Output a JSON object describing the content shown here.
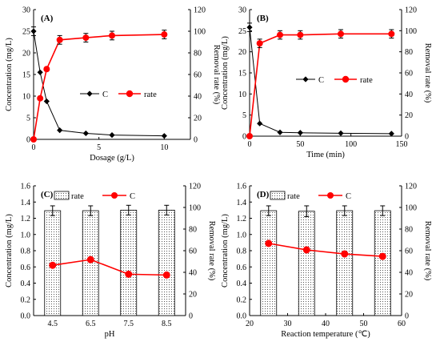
{
  "chart_data": [
    {
      "panel": "(A)",
      "type": "line",
      "xlabel": "Dosage (g/L)",
      "ylabel_left": "Concentration (mg/L)",
      "ylabel_right": "Removal rate (%)",
      "xlim": [
        0,
        12
      ],
      "xticks": [
        0,
        5,
        10
      ],
      "ylim_left": [
        0,
        30
      ],
      "yticks_left": [
        0,
        5,
        10,
        15,
        20,
        25,
        30
      ],
      "ylim_right": [
        0,
        120
      ],
      "yticks_right": [
        0,
        20,
        40,
        60,
        80,
        100,
        120
      ],
      "legend_position": "center-right",
      "series": [
        {
          "name": "C",
          "axis": "left",
          "marker": "diamond",
          "color": "#000000",
          "x": [
            0,
            0.5,
            1,
            2,
            4,
            6,
            10
          ],
          "y": [
            25.0,
            15.5,
            8.8,
            2.1,
            1.4,
            1.0,
            0.8
          ],
          "err": [
            1.0,
            0,
            0,
            0,
            0,
            0,
            0
          ]
        },
        {
          "name": "rate",
          "axis": "right",
          "marker": "circle",
          "color": "#ff0000",
          "x": [
            0,
            0.5,
            1,
            2,
            4,
            6,
            10
          ],
          "y": [
            0,
            38,
            65,
            92,
            94,
            96,
            97
          ],
          "err": [
            0,
            0,
            0,
            4,
            4,
            4,
            4
          ]
        }
      ]
    },
    {
      "panel": "(B)",
      "type": "line",
      "xlabel": "Time (min)",
      "ylabel_left": "Concentration (mg/L)",
      "ylabel_right": "Removal rate (%)",
      "xlim": [
        0,
        150
      ],
      "xticks": [
        0,
        50,
        100,
        150
      ],
      "ylim_left": [
        0,
        30
      ],
      "yticks_left": [
        0,
        5,
        10,
        15,
        20,
        25,
        30
      ],
      "ylim_right": [
        0,
        120
      ],
      "yticks_right": [
        0,
        20,
        40,
        60,
        80,
        100,
        120
      ],
      "legend_position": "center-right",
      "series": [
        {
          "name": "C",
          "axis": "left",
          "marker": "diamond",
          "color": "#000000",
          "x": [
            0,
            10,
            30,
            50,
            90,
            140
          ],
          "y": [
            25.8,
            3.0,
            0.9,
            0.8,
            0.7,
            0.6
          ],
          "err": [
            1.0,
            0,
            0,
            0,
            0,
            0
          ]
        },
        {
          "name": "rate",
          "axis": "right",
          "marker": "circle",
          "color": "#ff0000",
          "x": [
            0,
            10,
            30,
            50,
            90,
            140
          ],
          "y": [
            0,
            88,
            96,
            96,
            97,
            97
          ],
          "err": [
            0,
            4,
            4,
            4,
            4,
            4
          ]
        }
      ]
    },
    {
      "panel": "(C)",
      "type": "bar",
      "xlabel": "pH",
      "ylabel_left": "Concentration (mg/L)",
      "ylabel_right": "Removal rate (%)",
      "categories": [
        "4.5",
        "6.5",
        "7.5",
        "8.5"
      ],
      "ylim_left": [
        0,
        1.6
      ],
      "yticks_left": [
        0,
        0.2,
        0.4,
        0.6,
        0.8,
        1.0,
        1.2,
        1.4,
        1.6
      ],
      "ylim_right": [
        0,
        120
      ],
      "yticks_right": [
        0,
        20,
        40,
        60,
        80,
        100,
        120
      ],
      "legend_position": "top",
      "bars": {
        "name": "rate",
        "axis": "right",
        "values": [
          97,
          97,
          97.5,
          97.5
        ],
        "err": [
          4.5,
          4.5,
          4.5,
          4.5
        ]
      },
      "line": {
        "name": "C",
        "axis": "left",
        "marker": "circle",
        "color": "#ff0000",
        "values": [
          0.62,
          0.69,
          0.51,
          0.5
        ]
      }
    },
    {
      "panel": "(D)",
      "type": "bar",
      "xlabel": "Reaction temperature (℃)",
      "ylabel_left": "Concentration (mg/L)",
      "ylabel_right": "Removal rate (%)",
      "xlim": [
        20,
        60
      ],
      "xticks": [
        20,
        30,
        40,
        50,
        60
      ],
      "x": [
        25,
        35,
        45,
        55
      ],
      "ylim_left": [
        0,
        1.6
      ],
      "yticks_left": [
        0,
        0.2,
        0.4,
        0.6,
        0.8,
        1.0,
        1.2,
        1.4,
        1.6
      ],
      "ylim_right": [
        0,
        120
      ],
      "yticks_right": [
        0,
        20,
        40,
        60,
        80,
        100,
        120
      ],
      "legend_position": "top",
      "bars": {
        "name": "rate",
        "axis": "right",
        "values": [
          97,
          96.5,
          97,
          97
        ],
        "err": [
          4.5,
          5,
          4.5,
          4.5
        ]
      },
      "line": {
        "name": "C",
        "axis": "left",
        "marker": "circle",
        "color": "#ff0000",
        "values": [
          0.89,
          0.81,
          0.76,
          0.73
        ]
      }
    }
  ]
}
